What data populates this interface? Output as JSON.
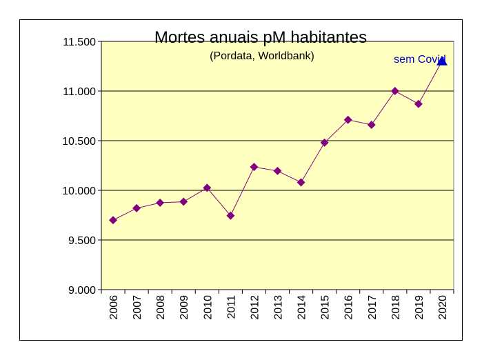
{
  "chart_data": {
    "type": "line",
    "title": "Mortes anuais pM habitantes",
    "subtitle": "(Pordata, Worldbank)",
    "xlabel": "",
    "ylabel": "",
    "categories": [
      "2006",
      "2007",
      "2008",
      "2009",
      "2010",
      "2011",
      "2012",
      "2013",
      "2014",
      "2015",
      "2016",
      "2017",
      "2018",
      "2019",
      "2020"
    ],
    "series": [
      {
        "values": [
          9700,
          9820,
          9875,
          9885,
          10025,
          9745,
          10235,
          10195,
          10080,
          10480,
          10710,
          10660,
          11000,
          10870,
          null
        ],
        "marker": "diamond",
        "color": "#800080",
        "line_color": "#800080"
      },
      {
        "values": [
          null,
          null,
          null,
          null,
          null,
          null,
          null,
          null,
          null,
          null,
          null,
          null,
          null,
          10870,
          11300
        ],
        "marker": "triangle",
        "color": "#0000cc",
        "line_color": "#800080"
      }
    ],
    "yticks": [
      "9.000",
      "9.500",
      "10.000",
      "10.500",
      "11.000",
      "11.500"
    ],
    "ytick_values": [
      9000,
      9500,
      10000,
      10500,
      11000,
      11500
    ],
    "ylim": [
      9000,
      11500
    ],
    "grid": true,
    "plot_background": "#ffffc0",
    "annotations": [
      {
        "text": "sem Covid",
        "category": "2020",
        "color": "#0000cc"
      }
    ]
  }
}
